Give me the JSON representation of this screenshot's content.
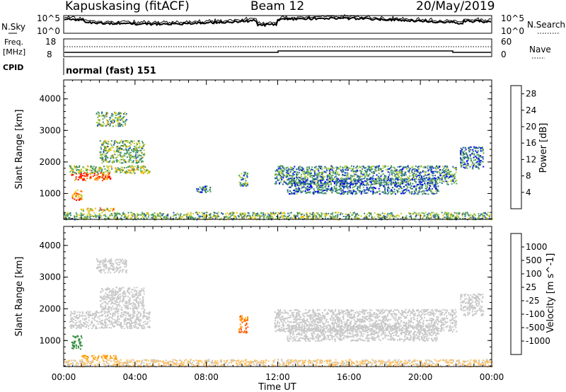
{
  "header": {
    "station": "Kapuskasing (fitACF)",
    "beam": "Beam 12",
    "date": "20/May/2019"
  },
  "panels": {
    "nsky_label": "N.Sky",
    "nsearch_label": "N.Search",
    "noise_ticks": [
      "10^5",
      "10^0"
    ],
    "freq_label": [
      "Freq.",
      "[MHz]"
    ],
    "freq_ticks": [
      "18",
      "8"
    ],
    "nave_label": "Nave",
    "nave_ticks": [
      "60",
      "0"
    ],
    "cpid_label": "CPID",
    "cpid_value": "normal (fast) 151"
  },
  "colors": {
    "power_scale": [
      "#0000ff",
      "#1f57ab",
      "#3c8a66",
      "#58a85e",
      "#b8d035",
      "#f0c000",
      "#ff8c00",
      "#ff4000",
      "#ff0000"
    ],
    "velocity_scale": [
      "#ff0000",
      "#ff5000",
      "#ff9b00",
      "#ffc060",
      "#c8c8c8",
      "#70c050",
      "#3a8f46",
      "#1f57ab",
      "#0000ff"
    ],
    "velocity_gray": "#c8c8c8"
  },
  "chart_data": [
    {
      "type": "heatmap",
      "title": "Power",
      "ylabel": "Slant Range [km]",
      "xlabel": "Time UT",
      "x_ticks": [
        "00:00",
        "04:00",
        "08:00",
        "12:00",
        "16:00",
        "20:00",
        "00:00"
      ],
      "xlim": [
        0,
        24
      ],
      "y_ticks": [
        1000,
        2000,
        3000,
        4000
      ],
      "ylim": [
        180,
        4600
      ],
      "colorbar": {
        "label": "Power [dB]",
        "ticks": [
          4,
          8,
          12,
          16,
          20,
          24,
          28
        ],
        "range": [
          0,
          30
        ]
      },
      "regions": [
        {
          "x": [
            0.4,
            2.6
          ],
          "y": [
            1430,
            1680
          ],
          "value": 25
        },
        {
          "x": [
            0.3,
            4.8
          ],
          "y": [
            1650,
            1900
          ],
          "value": 14
        },
        {
          "x": [
            2.0,
            4.5
          ],
          "y": [
            1980,
            2700
          ],
          "value": 12
        },
        {
          "x": [
            1.8,
            3.5
          ],
          "y": [
            3150,
            3600
          ],
          "value": 11
        },
        {
          "x": [
            0.8,
            2.8
          ],
          "y": [
            460,
            560
          ],
          "value": 18
        },
        {
          "x": [
            0.4,
            1.0
          ],
          "y": [
            800,
            1150
          ],
          "value": 22
        },
        {
          "x": [
            9.8,
            10.3
          ],
          "y": [
            1250,
            1700
          ],
          "value": 10
        },
        {
          "x": [
            7.4,
            8.2
          ],
          "y": [
            1050,
            1250
          ],
          "value": 8
        },
        {
          "x": [
            11.8,
            22.0
          ],
          "y": [
            1300,
            1900
          ],
          "value": 9
        },
        {
          "x": [
            12.5,
            21.0
          ],
          "y": [
            1000,
            1500
          ],
          "value": 7
        },
        {
          "x": [
            22.2,
            23.5
          ],
          "y": [
            1800,
            2500
          ],
          "value": 7
        },
        {
          "x": [
            0.0,
            24.0
          ],
          "y": [
            190,
            420
          ],
          "value": 12
        }
      ]
    },
    {
      "type": "heatmap",
      "title": "Velocity",
      "ylabel": "Slant Range [km]",
      "xlabel": "Time UT",
      "x_ticks": [
        "00:00",
        "04:00",
        "08:00",
        "12:00",
        "16:00",
        "20:00",
        "00:00"
      ],
      "xlim": [
        0,
        24
      ],
      "y_ticks": [
        1000,
        2000,
        3000,
        4000
      ],
      "ylim": [
        180,
        4600
      ],
      "colorbar": {
        "label": "Velocity [m s^-1]",
        "ticks": [
          "1000",
          "500",
          "100",
          "25",
          "-25",
          "-100",
          "-500",
          "-1000"
        ]
      },
      "regions": [
        {
          "x": [
            0.3,
            4.8
          ],
          "y": [
            1400,
            1950
          ],
          "value": 0
        },
        {
          "x": [
            2.0,
            4.5
          ],
          "y": [
            1980,
            2700
          ],
          "value": 0
        },
        {
          "x": [
            1.8,
            3.5
          ],
          "y": [
            3150,
            3600
          ],
          "value": 0
        },
        {
          "x": [
            0.4,
            1.0
          ],
          "y": [
            750,
            1200
          ],
          "value": 200
        },
        {
          "x": [
            1.0,
            3.0
          ],
          "y": [
            430,
            560
          ],
          "value": -150
        },
        {
          "x": [
            9.8,
            10.3
          ],
          "y": [
            1250,
            1800
          ],
          "value": -500
        },
        {
          "x": [
            11.8,
            22.0
          ],
          "y": [
            1300,
            2000
          ],
          "value": 0
        },
        {
          "x": [
            12.5,
            21.0
          ],
          "y": [
            1000,
            1500
          ],
          "value": 0
        },
        {
          "x": [
            22.2,
            23.5
          ],
          "y": [
            1800,
            2500
          ],
          "value": 0
        },
        {
          "x": [
            0.0,
            24.0
          ],
          "y": [
            190,
            420
          ],
          "value": -30
        }
      ]
    }
  ]
}
